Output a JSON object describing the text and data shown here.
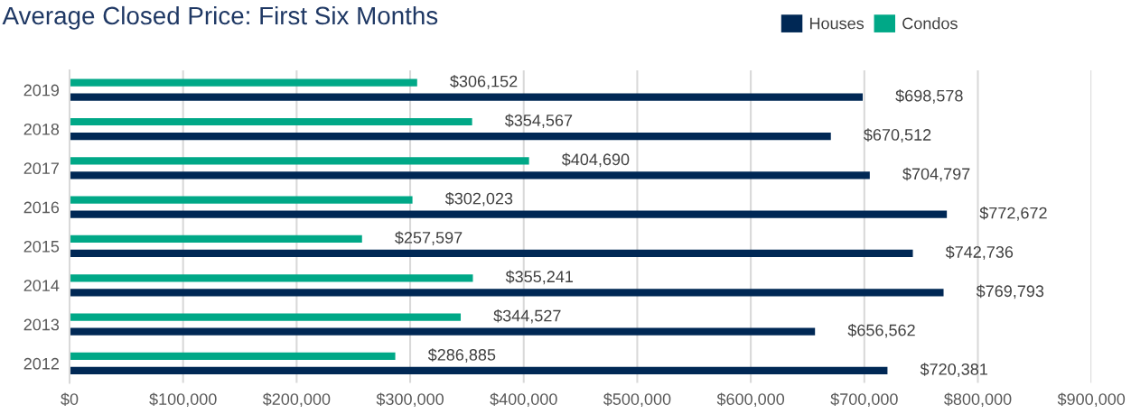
{
  "chart_data": {
    "type": "bar",
    "orientation": "horizontal",
    "title": "Average Closed Price: First Six Months",
    "categories": [
      "2019",
      "2018",
      "2017",
      "2016",
      "2015",
      "2014",
      "2013",
      "2012"
    ],
    "series": [
      {
        "name": "Houses",
        "color": "#002855",
        "values": [
          698578,
          670512,
          704797,
          772672,
          742736,
          769793,
          656562,
          720381
        ],
        "value_labels": [
          "$698,578",
          "$670,512",
          "$704,797",
          "$772,672",
          "$742,736",
          "$769,793",
          "$656,562",
          "$720,381"
        ]
      },
      {
        "name": "Condos",
        "color": "#00a887",
        "values": [
          306152,
          354567,
          404690,
          302023,
          257597,
          355241,
          344527,
          286885
        ],
        "value_labels": [
          "$306,152",
          "$354,567",
          "$404,690",
          "$302,023",
          "$257,597",
          "$355,241",
          "$344,527",
          "$286,885"
        ]
      }
    ],
    "xlim": [
      0,
      900000
    ],
    "xticks": [
      {
        "value": 0,
        "label": "$0"
      },
      {
        "value": 100000,
        "label": "$100,000"
      },
      {
        "value": 200000,
        "label": "$200,000"
      },
      {
        "value": 300000,
        "label": "$300,000"
      },
      {
        "value": 400000,
        "label": "$400,000"
      },
      {
        "value": 500000,
        "label": "$500,000"
      },
      {
        "value": 600000,
        "label": "$600,000"
      },
      {
        "value": 700000,
        "label": "$700,000"
      },
      {
        "value": 800000,
        "label": "$800,000"
      },
      {
        "value": 900000,
        "label": "$900,000"
      }
    ],
    "grid": "x",
    "legend": "top right"
  }
}
